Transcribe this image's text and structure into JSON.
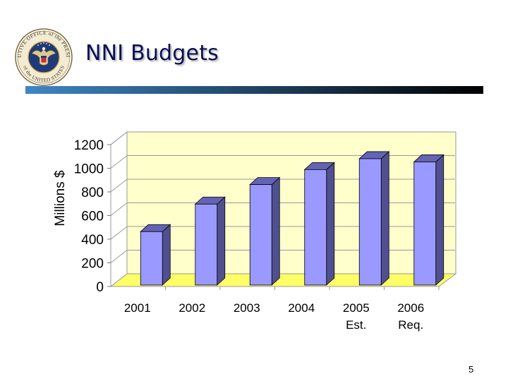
{
  "slide": {
    "title": "NNI Budgets",
    "page_number": "5"
  },
  "seal": {
    "text_top": "EXECUTIVE OFFICE of the PRESIDENT",
    "text_bottom": "of the UNITED STATES"
  },
  "colors": {
    "title": "#0a0f55",
    "bar_front": "#9999ff",
    "bar_side": "#505090",
    "bar_top": "#6464b4",
    "plot_back": "#ffffcc",
    "plot_floor": "#ffff66",
    "gradient_start": "#3f86c5",
    "gradient_end": "#000000"
  },
  "chart_data": {
    "type": "bar",
    "ylabel": "Millions $",
    "xlabel": "",
    "ylim": [
      0,
      1200
    ],
    "yticks": [
      0,
      200,
      400,
      600,
      800,
      1000,
      1200
    ],
    "grid": true,
    "categories": [
      [
        "2001"
      ],
      [
        "2002"
      ],
      [
        "2003"
      ],
      [
        "2004"
      ],
      [
        "2005",
        "Est."
      ],
      [
        "2006",
        "Req."
      ]
    ],
    "values": [
      464,
      697,
      862,
      989,
      1081,
      1054
    ]
  }
}
